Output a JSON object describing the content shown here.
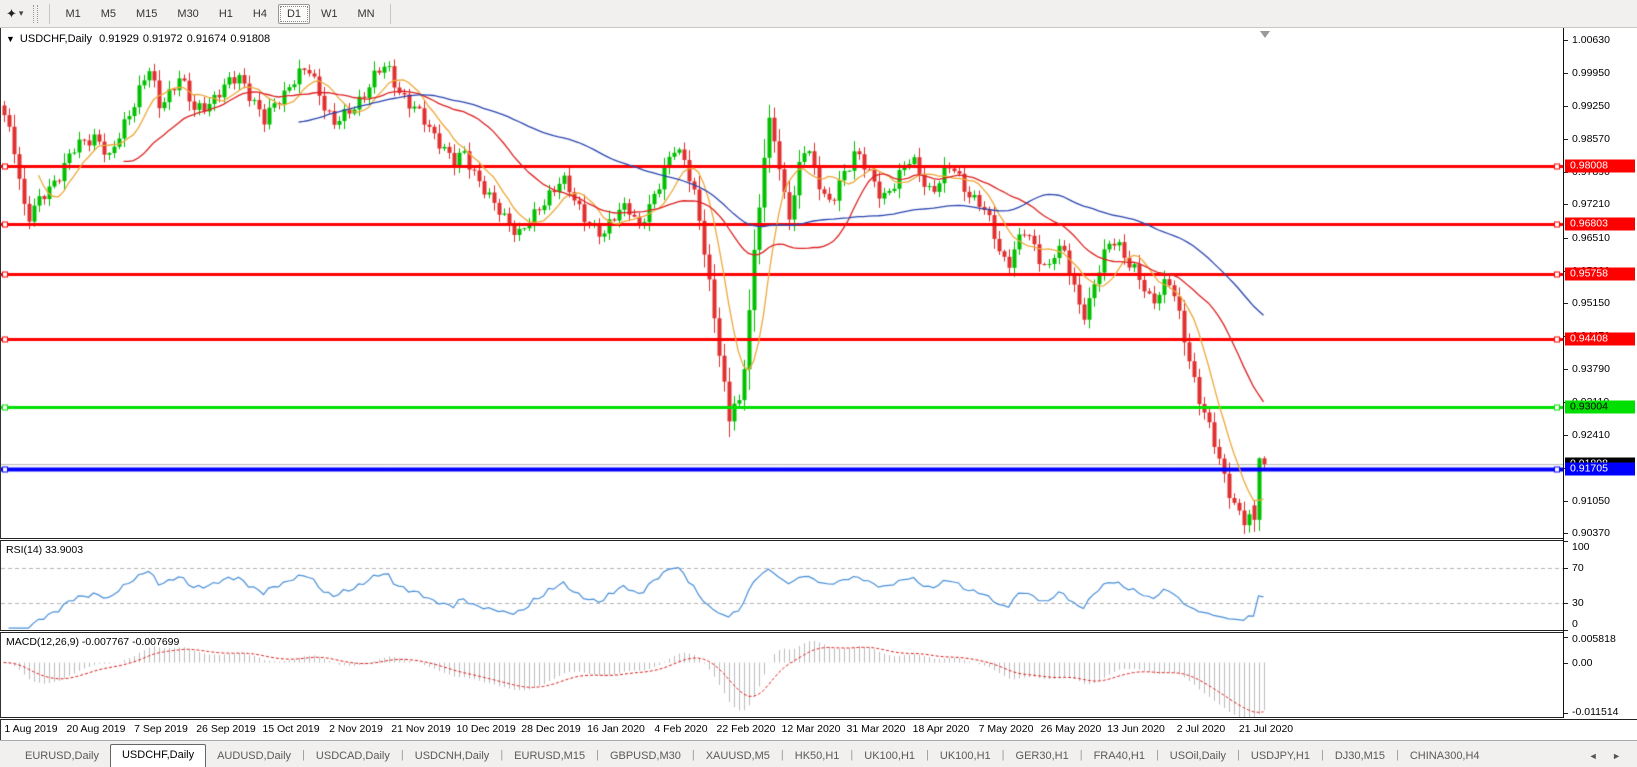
{
  "toolbar": {
    "draw_tool_icon": "cursor-dropdown",
    "timeframes": [
      "M1",
      "M5",
      "M15",
      "M30",
      "H1",
      "H4",
      "D1",
      "W1",
      "MN"
    ],
    "active_timeframe": "D1"
  },
  "chart": {
    "title": {
      "symbol_period": "USDCHF,Daily",
      "open": "0.91929",
      "high": "0.91972",
      "low": "0.91674",
      "close": "0.91808"
    },
    "price_axis_labels": [
      "1.00630",
      "0.99950",
      "0.99250",
      "0.98570",
      "0.97890",
      "0.97210",
      "0.96510",
      "0.95830",
      "0.95150",
      "0.94470",
      "0.93790",
      "0.93110",
      "0.92410",
      "0.91730",
      "0.91050",
      "0.90370"
    ]
  },
  "panels": {
    "rsi": {
      "label": "RSI(14) 33.9003",
      "scale": [
        "100",
        "70",
        "30",
        "0"
      ],
      "scale_values": [
        100,
        70,
        30,
        0
      ],
      "dashed_levels": [
        70,
        30
      ]
    },
    "macd": {
      "label": "MACD(12,26,9) -0.007767 -0.007699",
      "scale": [
        "0.005818",
        "0.00",
        "-0.011514"
      ],
      "scale_values": [
        0.005818,
        0,
        -0.011514
      ]
    }
  },
  "date_axis": {
    "labels": [
      "1 Aug 2019",
      "20 Aug 2019",
      "7 Sep 2019",
      "26 Sep 2019",
      "15 Oct 2019",
      "2 Nov 2019",
      "21 Nov 2019",
      "10 Dec 2019",
      "28 Dec 2019",
      "16 Jan 2020",
      "4 Feb 2020",
      "22 Feb 2020",
      "12 Mar 2020",
      "31 Mar 2020",
      "18 Apr 2020",
      "7 May 2020",
      "26 May 2020",
      "13 Jun 2020",
      "2 Jul 2020",
      "21 Jul 2020"
    ]
  },
  "tabs": {
    "items": [
      "EURUSD,Daily",
      "USDCHF,Daily",
      "AUDUSD,Daily",
      "USDCAD,Daily",
      "USDCNH,Daily",
      "EURUSD,M15",
      "GBPUSD,M30",
      "XAUUSD,M5",
      "HK50,H1",
      "UK100,H1",
      "UK100,H1",
      "GER30,H1",
      "FRA40,H1",
      "USOil,Daily",
      "USDJPY,H1",
      "DJ30,M15",
      "CHINA300,H4"
    ],
    "active_index": 1,
    "scroll_left_icon": "◄",
    "scroll_right_icon": "►"
  },
  "colors": {
    "candle_up": "#00c000",
    "candle_down": "#e03030",
    "ma_fast": "#eda93c",
    "ma_medium": "#dd2222",
    "ma_slow": "#2c46b0",
    "rsi_line": "#4a90d9",
    "macd_histogram": "#bdbdbd",
    "macd_signal": "#dd2222",
    "resistance_line": "#ff0000",
    "support_green": "#00e000",
    "support_blue": "#0000ff",
    "current_price_line": "#b4b4b4",
    "current_price_badge_bg": "#000000"
  },
  "chart_data": {
    "type": "candlestick",
    "symbol": "USDCHF",
    "timeframe": "Daily",
    "last_candle": {
      "open": 0.91929,
      "high": 0.91972,
      "low": 0.91674,
      "close": 0.91808
    },
    "visible_price_range": {
      "top": 1.0063,
      "bottom": 0.9037
    },
    "visible_date_range": {
      "start": "1 Aug 2019",
      "end": "21 Jul 2020"
    },
    "horizontal_levels": [
      {
        "value": 0.98008,
        "color": "#ff0000",
        "role": "resistance",
        "badge_text_color": "#ffffff"
      },
      {
        "value": 0.96803,
        "color": "#ff0000",
        "role": "resistance",
        "badge_text_color": "#ffffff"
      },
      {
        "value": 0.95758,
        "color": "#ff0000",
        "role": "resistance",
        "badge_text_color": "#ffffff"
      },
      {
        "value": 0.94408,
        "color": "#ff0000",
        "role": "resistance",
        "badge_text_color": "#ffffff"
      },
      {
        "value": 0.93004,
        "color": "#00e000",
        "role": "support",
        "badge_text_color": "#000000"
      },
      {
        "value": 0.91705,
        "color": "#0000ff",
        "role": "support",
        "badge_text_color": "#ffffff"
      }
    ],
    "current_price_line": 0.91808,
    "price_path": [
      [
        0,
        0.9915
      ],
      [
        12,
        0.9845
      ],
      [
        25,
        0.969
      ],
      [
        45,
        0.9745
      ],
      [
        70,
        0.983
      ],
      [
        95,
        0.9868
      ],
      [
        108,
        0.9812
      ],
      [
        125,
        0.99
      ],
      [
        140,
        0.9975
      ],
      [
        148,
        1.0
      ],
      [
        157,
        0.9922
      ],
      [
        168,
        0.9958
      ],
      [
        178,
        0.999
      ],
      [
        192,
        0.9912
      ],
      [
        205,
        0.9932
      ],
      [
        222,
        0.9962
      ],
      [
        238,
        0.9988
      ],
      [
        252,
        0.9938
      ],
      [
        262,
        0.989
      ],
      [
        278,
        0.9945
      ],
      [
        295,
        0.9988
      ],
      [
        308,
        0.9998
      ],
      [
        318,
        0.9952
      ],
      [
        332,
        0.9888
      ],
      [
        345,
        0.9905
      ],
      [
        360,
        0.9948
      ],
      [
        375,
        0.9992
      ],
      [
        385,
        1.0008
      ],
      [
        395,
        0.9968
      ],
      [
        408,
        0.9928
      ],
      [
        425,
        0.9888
      ],
      [
        440,
        0.9848
      ],
      [
        452,
        0.9802
      ],
      [
        462,
        0.9828
      ],
      [
        475,
        0.9782
      ],
      [
        490,
        0.9722
      ],
      [
        505,
        0.9688
      ],
      [
        518,
        0.9662
      ],
      [
        532,
        0.9692
      ],
      [
        548,
        0.9748
      ],
      [
        560,
        0.9775
      ],
      [
        575,
        0.9718
      ],
      [
        590,
        0.9678
      ],
      [
        602,
        0.9652
      ],
      [
        615,
        0.9705
      ],
      [
        625,
        0.9728
      ],
      [
        638,
        0.9668
      ],
      [
        650,
        0.9722
      ],
      [
        663,
        0.9802
      ],
      [
        672,
        0.984
      ],
      [
        683,
        0.9803
      ],
      [
        693,
        0.9742
      ],
      [
        701,
        0.9655
      ],
      [
        709,
        0.9535
      ],
      [
        717,
        0.9415
      ],
      [
        725,
        0.93
      ],
      [
        729,
        0.9255
      ],
      [
        734,
        0.9345
      ],
      [
        739,
        0.9295
      ],
      [
        745,
        0.9455
      ],
      [
        752,
        0.96
      ],
      [
        759,
        0.9745
      ],
      [
        765,
        0.987
      ],
      [
        769,
        0.9905
      ],
      [
        775,
        0.9838
      ],
      [
        781,
        0.9755
      ],
      [
        787,
        0.9692
      ],
      [
        793,
        0.9738
      ],
      [
        799,
        0.9812
      ],
      [
        805,
        0.9852
      ],
      [
        813,
        0.9795
      ],
      [
        821,
        0.9748
      ],
      [
        829,
        0.9712
      ],
      [
        838,
        0.9765
      ],
      [
        847,
        0.9805
      ],
      [
        854,
        0.984
      ],
      [
        862,
        0.9805
      ],
      [
        870,
        0.9768
      ],
      [
        880,
        0.9732
      ],
      [
        890,
        0.9762
      ],
      [
        900,
        0.9792
      ],
      [
        910,
        0.9812
      ],
      [
        920,
        0.9778
      ],
      [
        930,
        0.9748
      ],
      [
        940,
        0.9778
      ],
      [
        950,
        0.98
      ],
      [
        960,
        0.9768
      ],
      [
        970,
        0.9738
      ],
      [
        980,
        0.9715
      ],
      [
        990,
        0.9672
      ],
      [
        998,
        0.9625
      ],
      [
        1006,
        0.9598
      ],
      [
        1014,
        0.9632
      ],
      [
        1022,
        0.9662
      ],
      [
        1030,
        0.9642
      ],
      [
        1038,
        0.9612
      ],
      [
        1046,
        0.9588
      ],
      [
        1054,
        0.9625
      ],
      [
        1062,
        0.9618
      ],
      [
        1070,
        0.9568
      ],
      [
        1076,
        0.9525
      ],
      [
        1082,
        0.9495
      ],
      [
        1088,
        0.952
      ],
      [
        1094,
        0.956
      ],
      [
        1102,
        0.961
      ],
      [
        1110,
        0.9655
      ],
      [
        1118,
        0.9638
      ],
      [
        1126,
        0.96
      ],
      [
        1134,
        0.9575
      ],
      [
        1142,
        0.9545
      ],
      [
        1150,
        0.952
      ],
      [
        1158,
        0.9545
      ],
      [
        1166,
        0.9565
      ],
      [
        1172,
        0.953
      ],
      [
        1178,
        0.948
      ],
      [
        1184,
        0.943
      ],
      [
        1190,
        0.938
      ],
      [
        1196,
        0.933
      ],
      [
        1202,
        0.929
      ],
      [
        1208,
        0.925
      ],
      [
        1214,
        0.921
      ],
      [
        1220,
        0.917
      ],
      [
        1226,
        0.9135
      ],
      [
        1232,
        0.9105
      ],
      [
        1238,
        0.9078
      ],
      [
        1244,
        0.9056
      ],
      [
        1250,
        0.907
      ],
      [
        1254,
        0.9193
      ],
      [
        1260,
        0.9181
      ]
    ],
    "indicators": {
      "moving_averages": [
        {
          "period": 8,
          "color": "#eda93c"
        },
        {
          "period": 25,
          "color": "#dd2222"
        },
        {
          "period": 60,
          "color": "#2c46b0"
        }
      ],
      "rsi": {
        "period": 14,
        "current": 33.9003,
        "levels": [
          70,
          30
        ]
      },
      "macd": {
        "fast": 12,
        "slow": 26,
        "signal": 9,
        "current_main": -0.007767,
        "current_signal": -0.007699
      }
    }
  }
}
